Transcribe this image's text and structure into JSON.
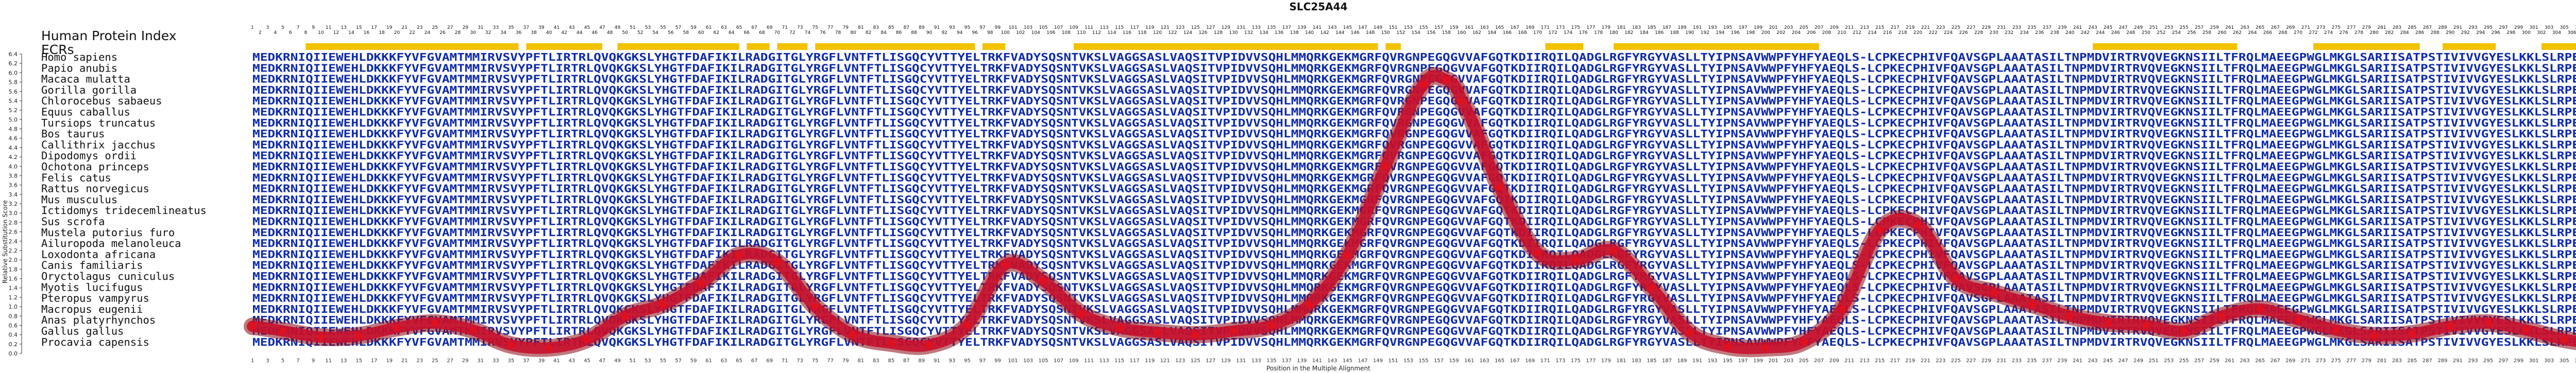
{
  "title": "SLC25A44",
  "header_label": "Human Protein Index",
  "ecr_label": "ECRs",
  "chart_data": {
    "type": "line",
    "title": "SLC25A44",
    "xlabel": "Position in the Multiple Alignment",
    "ylabel": "Relative Substitution Score",
    "xlim": [
      1,
      314
    ],
    "ylim": [
      0.0,
      6.4
    ],
    "yticks": [
      0.0,
      0.2,
      0.4,
      0.6,
      0.8,
      1.0,
      1.2,
      1.4,
      1.6,
      1.8,
      2.0,
      2.2,
      2.4,
      2.6,
      2.8,
      3.0,
      3.2,
      3.4,
      3.6,
      3.8,
      4.0,
      4.2,
      4.4,
      4.6,
      4.8,
      5.0,
      5.2,
      5.4,
      5.6,
      5.8,
      6.0,
      6.2,
      6.4
    ],
    "xtick_step": 2,
    "grid": false,
    "curve_color": "#c8102e",
    "point_color": "#e0101e",
    "ecr_color": "#f2c100",
    "ecr_regions": [
      [
        8,
        36
      ],
      [
        37,
        47
      ],
      [
        49,
        65
      ],
      [
        66,
        69
      ],
      [
        70,
        74
      ],
      [
        75,
        96
      ],
      [
        97,
        100
      ],
      [
        109,
        149
      ],
      [
        150,
        152
      ],
      [
        171,
        176
      ],
      [
        180,
        207
      ],
      [
        243,
        262
      ],
      [
        272,
        286
      ],
      [
        289,
        296
      ],
      [
        302,
        314
      ]
    ],
    "series": [
      {
        "x": [
          1,
          5,
          10,
          15,
          20,
          25,
          30,
          35,
          40,
          45,
          50,
          55,
          60,
          65,
          70,
          75,
          80,
          85,
          90,
          95,
          100,
          105,
          110,
          115,
          120,
          125,
          130,
          135,
          140,
          145,
          150,
          155,
          158,
          160,
          165,
          170,
          175,
          180,
          185,
          190,
          195,
          200,
          205,
          210,
          215,
          220,
          225,
          230,
          235,
          240,
          245,
          250,
          255,
          260,
          265,
          270,
          275,
          280,
          285,
          290,
          295,
          300,
          305,
          310,
          314
        ],
        "y": [
          0.58,
          0.48,
          0.35,
          0.38,
          0.55,
          0.65,
          0.5,
          0.18,
          0.12,
          0.3,
          0.8,
          1.05,
          1.5,
          2.1,
          1.95,
          1.0,
          0.4,
          0.22,
          0.18,
          0.6,
          1.9,
          1.55,
          0.85,
          0.55,
          0.45,
          0.4,
          0.48,
          0.6,
          1.05,
          2.1,
          4.0,
          5.75,
          5.85,
          5.4,
          3.55,
          2.15,
          2.0,
          2.2,
          1.4,
          0.45,
          0.15,
          0.12,
          0.25,
          0.95,
          2.65,
          2.75,
          1.6,
          1.3,
          1.05,
          0.8,
          0.65,
          0.6,
          0.48,
          0.8,
          0.95,
          0.72,
          0.5,
          0.38,
          0.42,
          0.58,
          0.65,
          0.5,
          0.3,
          0.2,
          0.18
        ]
      }
    ]
  },
  "species": [
    "Homo sapiens",
    "Papio anubis",
    "Macaca mulatta",
    "Gorilla gorilla",
    "Chlorocebus sabaeus",
    "Equus caballus",
    "Tursiops truncatus",
    "Bos taurus",
    "Callithrix jacchus",
    "Dipodomys ordii",
    "Ochotona princeps",
    "Felis catus",
    "Rattus norvegicus",
    "Mus musculus",
    "Ictidomys tridecemlineatus",
    "Sus scrofa",
    "Mustela putorius furo",
    "Ailuropoda melanoleuca",
    "Loxodonta africana",
    "Canis familiaris",
    "Oryctolagus cuniculus",
    "Myotis lucifugus",
    "Pteropus vampyrus",
    "Macropus eugenii",
    "Anas platyrhynchos",
    "Gallus gallus",
    "Procavia capensis"
  ],
  "sequences": [
    "MEDKRNIQIIEWEHLDKKKFYVFGVAMTMMIRVSVYPFTLIRTRLQVQKGKSLYHGTFDAFIKILRADGITGLYRGFLVNTFTLISGQCYVTTYELTRKFVADYSQSNTVKSLVAGGSASLVAQSITVPIDVVSQHLMMQRKGEKMGRFQVRGNPEGQGVVAFGQTKDIIRQILQADGLRGFYRGYVASLLTYIPNSAVWWPFYHFYAEQLS-LCPKECPHIVFQAVSGPLAAATASILTNPMDVIRTRVQVEGKNSIILTFRQLMAEEGPWGLMKGLSARIISATPSTIVIVVGYESLKKLSLRPELVDSRHW",
    "MEDKRNIQIIEWEHLDKKKFYVFGVAMTMMIRVSVYPFTLIRTRLQVQKGKSLYHGTFDAFIKILRADGITGLYRGFLVNTFTLISGQCYVTTYELTRKFVADYSQSNTVKSLVAGGSASLVAQSITVPIDVVSQHLMMQRKGEKMGRFQVRGNPEGQGVVAFGQTKDIIRQILQADGLRGFYRGYVASLLTYIPNSAVWWPFYHFYAEQLS-LCPKECPHIVFQAVSGPLAAATASILTNPMDVIRTRVQVEGKNSIILTFRQLMAEEGPWGLMKGLSARIISATPSTIVIVVGYESLKKLSLRPELVDSRHW"
  ],
  "xlabel": "Position in the Multiple Alignment",
  "ylabel": "Relative Substitution Score"
}
